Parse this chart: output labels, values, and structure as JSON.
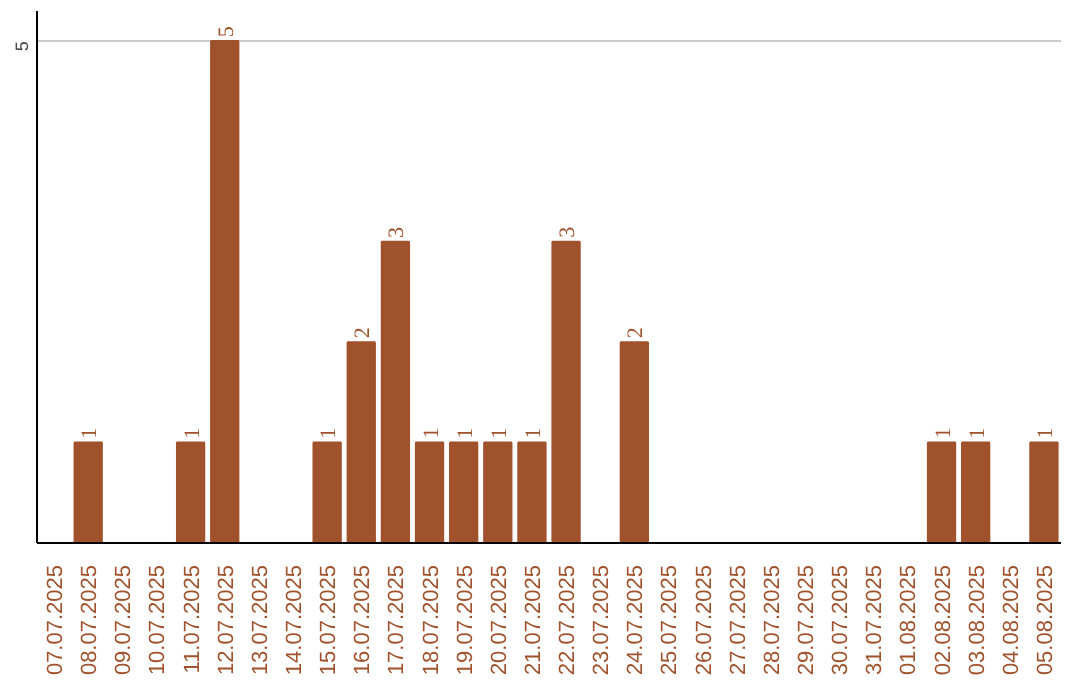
{
  "chart_data": {
    "type": "bar",
    "categories": [
      "07.07.2025",
      "08.07.2025",
      "09.07.2025",
      "10.07.2025",
      "11.07.2025",
      "12.07.2025",
      "13.07.2025",
      "14.07.2025",
      "15.07.2025",
      "16.07.2025",
      "17.07.2025",
      "18.07.2025",
      "19.07.2025",
      "20.07.2025",
      "21.07.2025",
      "22.07.2025",
      "23.07.2025",
      "24.07.2025",
      "25.07.2025",
      "26.07.2025",
      "27.07.2025",
      "28.07.2025",
      "29.07.2025",
      "30.07.2025",
      "31.07.2025",
      "01.08.2025",
      "02.08.2025",
      "03.08.2025",
      "04.08.2025",
      "05.08.2025"
    ],
    "values": [
      0,
      1,
      0,
      0,
      1,
      5,
      0,
      0,
      1,
      2,
      3,
      1,
      1,
      1,
      1,
      3,
      0,
      2,
      0,
      0,
      0,
      0,
      0,
      0,
      0,
      0,
      1,
      1,
      0,
      1
    ],
    "value_labels": [
      null,
      "1",
      null,
      null,
      "1",
      "5",
      null,
      null,
      "1",
      "2",
      "3",
      "1",
      "1",
      "1",
      "1",
      "3",
      null,
      "2",
      null,
      null,
      null,
      null,
      null,
      null,
      null,
      null,
      "1",
      "1",
      null,
      "1"
    ],
    "color": "#a0522d",
    "ylim": [
      0,
      5.3
    ],
    "yticks": [
      5
    ],
    "grid": "y"
  }
}
